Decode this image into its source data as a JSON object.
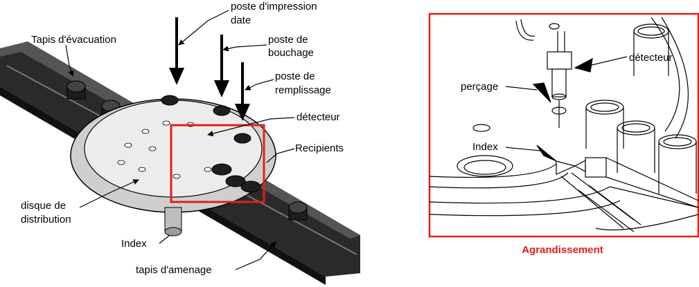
{
  "left_diagram": {
    "labels": {
      "poste_impression": "poste d'impression",
      "poste_impression_2": "date",
      "poste_bouchage": "poste de",
      "poste_bouchage_2": "bouchage",
      "poste_remplissage": "poste de",
      "poste_remplissage_2": "remplissage",
      "tapis_evacuation": "Tapis d'évacuation",
      "detecteur": "détecteur",
      "recipients": "Recipients",
      "disque": "disque de",
      "disque_2": "distribution",
      "index": "Index",
      "tapis_amenage": "tapis d'amenage"
    },
    "highlight_color": "#e0201c"
  },
  "zoom_panel": {
    "labels": {
      "detecteur": "détecteur",
      "percage": "perçage",
      "index": "Index"
    },
    "caption": "Agrandissement",
    "frame_color": "#e0201c"
  }
}
